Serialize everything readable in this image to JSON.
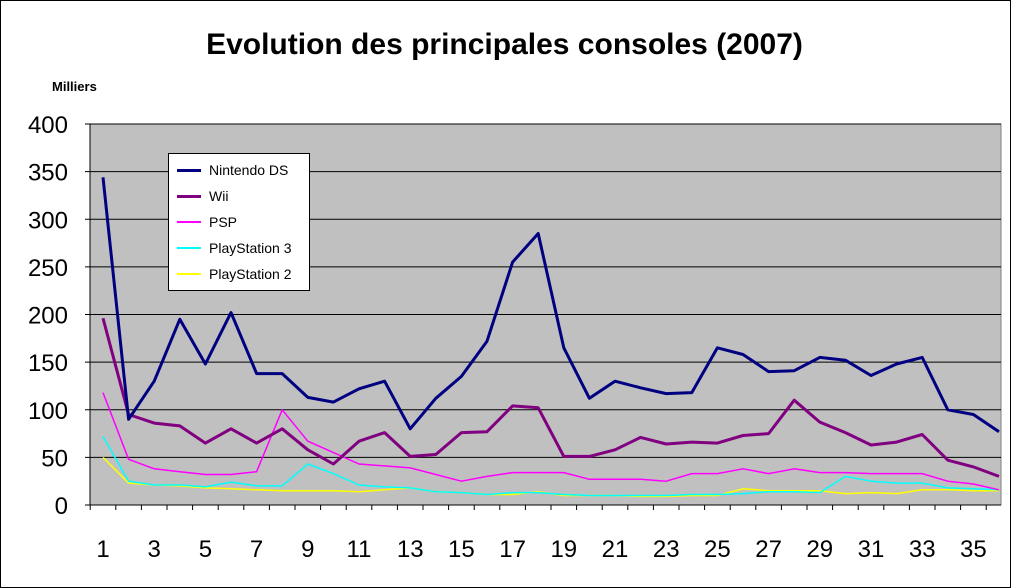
{
  "chart_data": {
    "type": "line",
    "title": "Evolution des principales consoles (2007)",
    "unit_label": "Milliers",
    "ylim": [
      0,
      400
    ],
    "yticks": [
      0,
      50,
      100,
      150,
      200,
      250,
      300,
      350,
      400
    ],
    "xlim": [
      1,
      36
    ],
    "xtick_labels": [
      "1",
      "3",
      "5",
      "7",
      "9",
      "11",
      "13",
      "15",
      "17",
      "19",
      "21",
      "23",
      "25",
      "27",
      "29",
      "31",
      "33",
      "35"
    ],
    "grid": true,
    "legend_position": "top-left",
    "series": [
      {
        "name": "Nintendo DS",
        "color": "#000080",
        "values": [
          344,
          90,
          130,
          195,
          148,
          202,
          138,
          138,
          113,
          108,
          122,
          130,
          80,
          112,
          135,
          172,
          255,
          285,
          165,
          112,
          130,
          123,
          117,
          118,
          165,
          158,
          140,
          141,
          155,
          152,
          136,
          148,
          155,
          100,
          95,
          77
        ]
      },
      {
        "name": "Wii",
        "color": "#800080",
        "values": [
          196,
          95,
          86,
          83,
          65,
          80,
          65,
          80,
          58,
          43,
          67,
          76,
          51,
          53,
          76,
          77,
          104,
          102,
          51,
          51,
          58,
          71,
          64,
          66,
          65,
          73,
          75,
          110,
          87,
          76,
          63,
          66,
          74,
          47,
          40,
          30
        ]
      },
      {
        "name": "PSP",
        "color": "#ff00ff",
        "values": [
          118,
          48,
          38,
          35,
          32,
          32,
          35,
          100,
          67,
          55,
          43,
          41,
          39,
          32,
          25,
          30,
          34,
          34,
          34,
          27,
          27,
          27,
          25,
          33,
          33,
          38,
          33,
          38,
          34,
          34,
          33,
          33,
          33,
          25,
          22,
          16
        ]
      },
      {
        "name": "PlayStation 3",
        "color": "#00ffff",
        "values": [
          72,
          25,
          21,
          21,
          19,
          24,
          20,
          20,
          43,
          33,
          21,
          19,
          18,
          14,
          13,
          11,
          13,
          13,
          11,
          10,
          10,
          10,
          10,
          11,
          11,
          12,
          14,
          14,
          13,
          30,
          25,
          23,
          23,
          18,
          17,
          16
        ]
      },
      {
        "name": "PlayStation 2",
        "color": "#ffff00",
        "values": [
          50,
          23,
          21,
          20,
          18,
          17,
          16,
          15,
          15,
          15,
          14,
          16,
          18,
          14,
          13,
          11,
          11,
          14,
          10,
          10,
          10,
          9,
          9,
          10,
          10,
          17,
          15,
          15,
          15,
          12,
          13,
          12,
          16,
          16,
          15,
          15
        ]
      }
    ]
  }
}
